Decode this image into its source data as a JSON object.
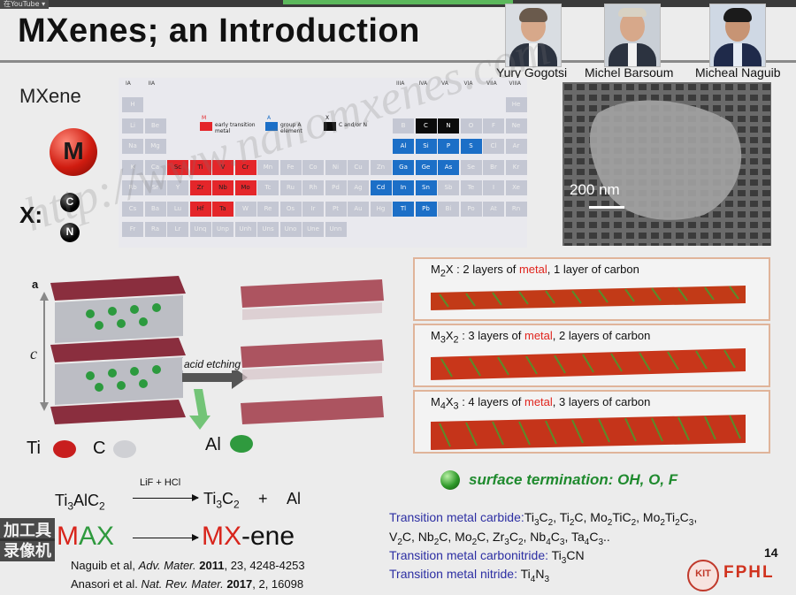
{
  "topbar": {
    "tag": "在YouTube ▾"
  },
  "slide": {
    "title": "MXenes; an Introduction",
    "people": [
      {
        "name": "Yury Gogotsi"
      },
      {
        "name": "Michel Barsoum"
      },
      {
        "name": "Micheal Naguib"
      }
    ],
    "mxene_label": "MXene",
    "m_symbol": "M",
    "x_label": "X:",
    "c_symbol": "C",
    "n_symbol": "N",
    "periodic_table": {
      "group_labels": [
        "IA",
        "IIA",
        "IIIA",
        "IVA",
        "VA",
        "VIA",
        "VIIA",
        "VIIIA"
      ],
      "legend": [
        {
          "key": "M",
          "text": "early transition metal",
          "color": "#e4262a"
        },
        {
          "key": "A",
          "text": "group A element",
          "color": "#1c6fc7"
        },
        {
          "key": "X",
          "text": "C and/or N",
          "color": "#0b0b0b"
        }
      ],
      "rows": [
        [
          "H",
          "",
          "",
          "",
          "",
          "",
          "",
          "",
          "",
          "",
          "",
          "",
          "",
          "",
          "",
          "",
          "",
          "He"
        ],
        [
          "Li",
          "Be",
          "",
          "",
          "",
          "",
          "",
          "",
          "",
          "",
          "",
          "",
          "B",
          "C",
          "N",
          "O",
          "F",
          "Ne"
        ],
        [
          "Na",
          "Mg",
          "",
          "",
          "",
          "",
          "",
          "",
          "",
          "",
          "",
          "",
          "Al",
          "Si",
          "P",
          "S",
          "Cl",
          "Ar"
        ],
        [
          "K",
          "Ca",
          "Sc",
          "Ti",
          "V",
          "Cr",
          "Mn",
          "Fe",
          "Co",
          "Ni",
          "Cu",
          "Zn",
          "Ga",
          "Ge",
          "As",
          "Se",
          "Br",
          "Kr"
        ],
        [
          "Rb",
          "Sr",
          "Y",
          "Zr",
          "Nb",
          "Mo",
          "Tc",
          "Ru",
          "Rh",
          "Pd",
          "Ag",
          "Cd",
          "In",
          "Sn",
          "Sb",
          "Te",
          "I",
          "Xe"
        ],
        [
          "Cs",
          "Ba",
          "Lu",
          "Hf",
          "Ta",
          "W",
          "Re",
          "Os",
          "Ir",
          "Pt",
          "Au",
          "Hg",
          "Tl",
          "Pb",
          "Bi",
          "Po",
          "At",
          "Rn"
        ],
        [
          "Fr",
          "Ra",
          "Lr",
          "Unq",
          "Unp",
          "Unh",
          "Uns",
          "Uno",
          "Une",
          "Unn",
          "",
          "",
          "",
          "",
          "",
          "",
          "",
          ""
        ]
      ],
      "red": [
        "Sc",
        "Ti",
        "V",
        "Cr",
        "Zr",
        "Nb",
        "Mo",
        "Hf",
        "Ta"
      ],
      "blue": [
        "Al",
        "Si",
        "P",
        "S",
        "Ga",
        "Ge",
        "As",
        "Cd",
        "In",
        "Sn",
        "Tl",
        "Pb"
      ],
      "black": [
        "C",
        "N"
      ]
    },
    "sem_scale": "200 nm",
    "panels": [
      {
        "formula_html": "M<sub>2</sub>X",
        "desc_pre": " :  2 layers of ",
        "metal": "metal",
        "desc_post": ", 1 layer of carbon"
      },
      {
        "formula_html": "M<sub>3</sub>X<sub>2</sub>",
        "desc_pre": " :  3 layers of ",
        "metal": "metal",
        "desc_post": ", 2 layers of carbon"
      },
      {
        "formula_html": "M<sub>4</sub>X<sub>3</sub>",
        "desc_pre": " : 4 layers of ",
        "metal": "metal",
        "desc_post": ", 3 layers of carbon"
      }
    ],
    "crystal_label_a": "a",
    "crystal_label_c": "c",
    "acid_etching": "acid etching",
    "legend_ti": "Ti",
    "legend_c": "C",
    "legend_al": "Al",
    "surface_termination": "surface termination: OH, O, F",
    "reaction": {
      "reagent": "LiF + HCl",
      "plus": "+",
      "product2": "Al"
    },
    "max_word": {
      "m": "M",
      "rest": "AX"
    },
    "mxene_word": {
      "m": "MX",
      "rest": "-ene"
    },
    "references": [
      {
        "authors": "Naguib et al, ",
        "journal": "Adv. Mater.",
        "year": " 2011",
        "rest": ", 23, 4248-4253"
      },
      {
        "authors": "Anasori et al. ",
        "journal": "Nat. Rev. Mater.",
        "year": "  2017",
        "rest": ", 2, 16098"
      }
    ],
    "transition_metal": {
      "carbide_label": "Transition metal carbide:",
      "carbonitride_label": "Transition metal carbonitride: ",
      "nitride_label": "Transition metal nitride: "
    },
    "slide_number": "14",
    "logo_text": "FPHL",
    "logo_badge": "KIT",
    "watermark": "http://www.nanomxenes.com",
    "overlay_tags": [
      "加工具",
      "录像机"
    ]
  }
}
